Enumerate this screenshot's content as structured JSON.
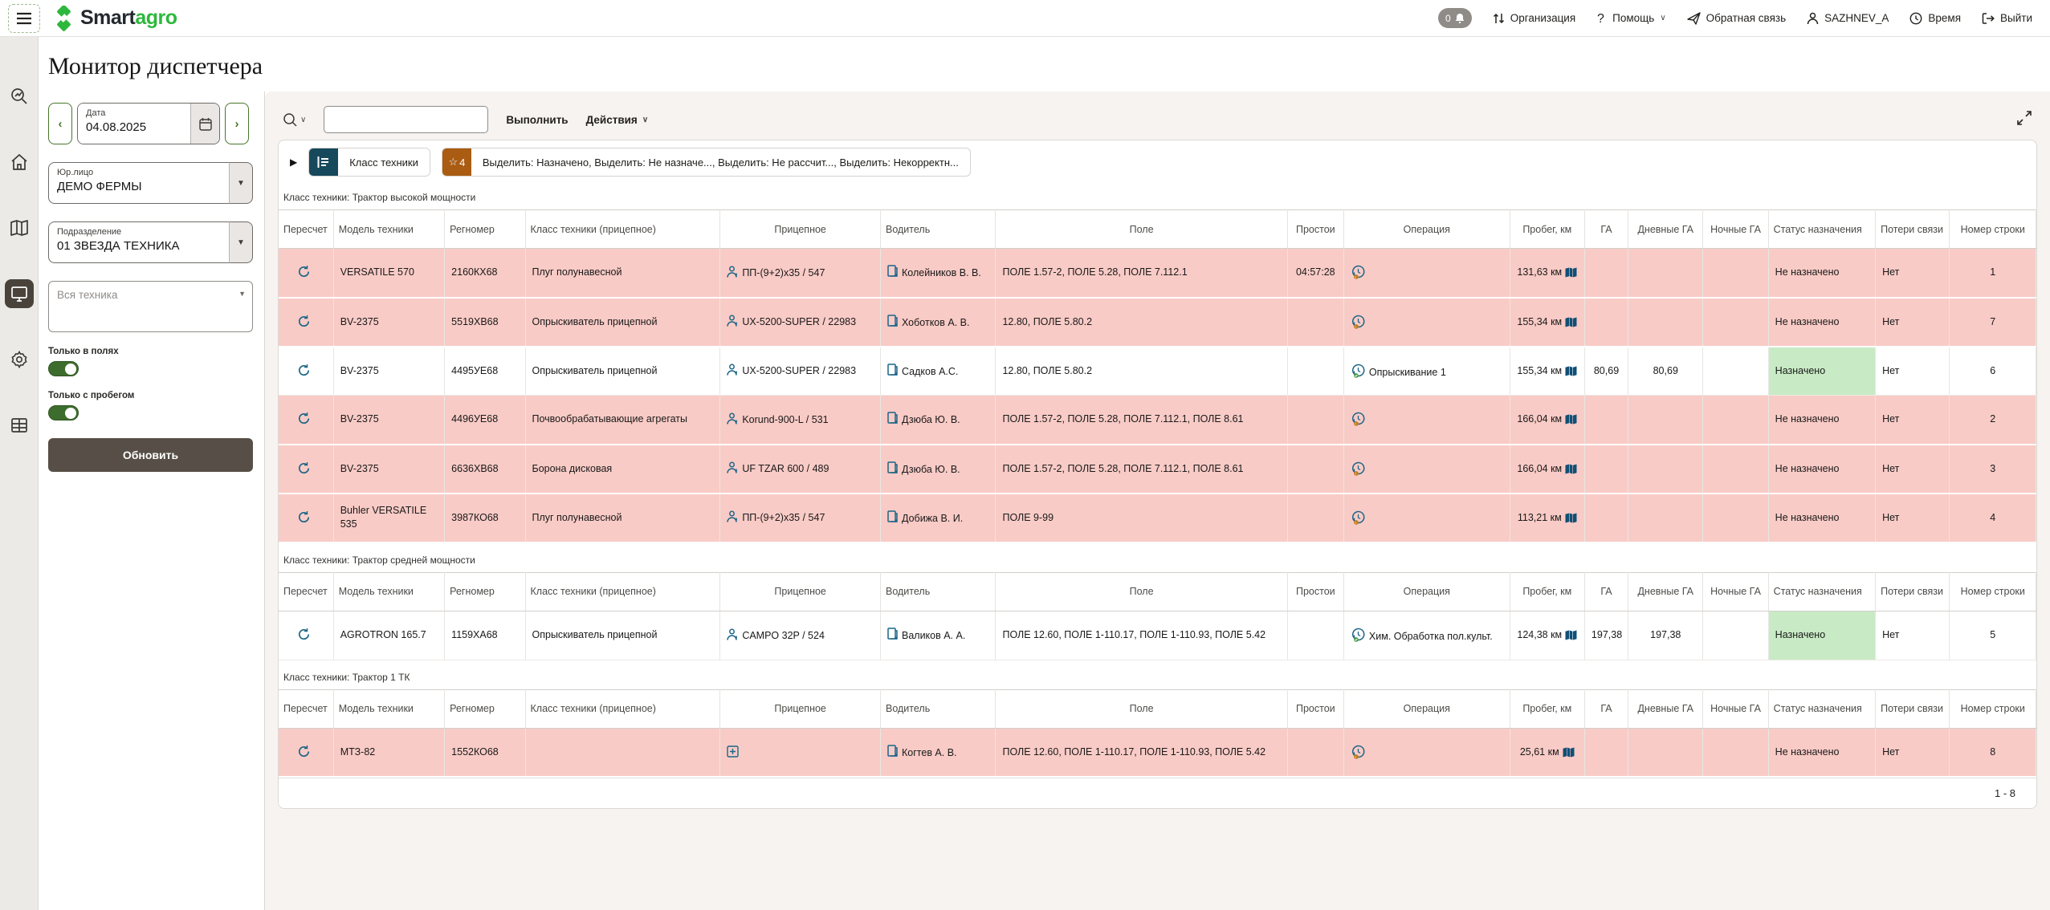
{
  "header": {
    "logo_smart": "Smart",
    "logo_agro": "agro",
    "notification_count": "0",
    "nav": [
      {
        "label": "Организация"
      },
      {
        "label": "Помощь",
        "chevron": "∨"
      },
      {
        "label": "Обратная связь"
      },
      {
        "label": "SAZHNEV_A"
      },
      {
        "label": "Время"
      },
      {
        "label": "Выйти"
      }
    ]
  },
  "page_title": "Монитор диспетчера",
  "filters": {
    "date_label": "Дата",
    "date_value": "04.08.2025",
    "entity_label": "Юр.лицо",
    "entity_value": "ДЕМО ФЕРМЫ",
    "division_label": "Подразделение",
    "division_value": "01 ЗВЕЗДА ТЕХНИКА",
    "equipment_placeholder": "Вся техника",
    "toggle_fields_label": "Только в полях",
    "toggle_mileage_label": "Только с пробегом",
    "refresh_label": "Обновить"
  },
  "toolbar": {
    "search_value": "",
    "run_label": "Выполнить",
    "actions_label": "Действия"
  },
  "control_bar": {
    "class_chip_label": "Класс техники",
    "star_count": "4",
    "highlight_label": "Выделить: Назначено, Выделить: Не назначе..., Выделить: Не рассчит..., Выделить: Некорректн..."
  },
  "table": {
    "headers": [
      "Пересчет",
      "Модель техники",
      "Регномер",
      "Класс техники (прицепное)",
      "Прицепное",
      "Водитель",
      "Поле",
      "Простои",
      "Операция",
      "Пробег, км",
      "ГА",
      "Дневные ГА",
      "Ночные ГА",
      "Статус назначения",
      "Потери связи",
      "Номер строки"
    ],
    "groups": [
      {
        "title": "Класс техники: Трактор высокой мощности",
        "rows": [
          {
            "model": "VERSATILE 570",
            "reg": "2160КХ68",
            "trailer_class": "Плуг полунавесной",
            "trailer": "ПП-(9+2)х35 / 547",
            "trailer_icon": "person-droplet",
            "driver": "Колейников В. В.",
            "field": "ПОЛЕ 1.57-2, ПОЛЕ 5.28, ПОЛЕ 7.112.1",
            "idle": "04:57:28",
            "operation": "",
            "op_status": "unassigned",
            "mileage": "131,63 км",
            "ga": "",
            "day_ga": "",
            "night_ga": "",
            "status": "Не назначено",
            "status_type": "unassigned",
            "losses": "Нет",
            "row_num": "1",
            "highlight": "pink"
          },
          {
            "model": "BV-2375",
            "reg": "5519ХВ68",
            "trailer_class": "Опрыскиватель прицепной",
            "trailer": "UX-5200-SUPER / 22983",
            "trailer_icon": "person-droplet",
            "driver": "Хоботков А. В.",
            "field": "12.80, ПОЛЕ 5.80.2",
            "idle": "",
            "operation": "",
            "op_status": "unassigned",
            "mileage": "155,34 км",
            "ga": "",
            "day_ga": "",
            "night_ga": "",
            "status": "Не назначено",
            "status_type": "unassigned",
            "losses": "Нет",
            "row_num": "7",
            "highlight": "pink"
          },
          {
            "model": "BV-2375",
            "reg": "4495УЕ68",
            "trailer_class": "Опрыскиватель прицепной",
            "trailer": "UX-5200-SUPER / 22983",
            "trailer_icon": "person-droplet",
            "driver": "Садков А.С.",
            "field": "12.80, ПОЛЕ 5.80.2",
            "idle": "",
            "operation": "Опрыскивание 1",
            "op_status": "assigned",
            "mileage": "155,34 км",
            "ga": "80,69",
            "day_ga": "80,69",
            "night_ga": "",
            "status": "Назначено",
            "status_type": "assigned",
            "losses": "Нет",
            "row_num": "6",
            "highlight": "white"
          },
          {
            "model": "BV-2375",
            "reg": "4496УЕ68",
            "trailer_class": "Почвообрабатывающие агрегаты",
            "trailer": "Korund-900-L / 531",
            "trailer_icon": "person-droplet",
            "driver": "Дзюба Ю. В.",
            "field": "ПОЛЕ 1.57-2, ПОЛЕ 5.28, ПОЛЕ 7.112.1, ПОЛЕ 8.61",
            "idle": "",
            "operation": "",
            "op_status": "unassigned",
            "mileage": "166,04 км",
            "ga": "",
            "day_ga": "",
            "night_ga": "",
            "status": "Не назначено",
            "status_type": "unassigned",
            "losses": "Нет",
            "row_num": "2",
            "highlight": "pink"
          },
          {
            "model": "BV-2375",
            "reg": "6636ХВ68",
            "trailer_class": "Борона дисковая",
            "trailer": "UF TZAR 600 / 489",
            "trailer_icon": "person-droplet",
            "driver": "Дзюба Ю. В.",
            "field": "ПОЛЕ 1.57-2, ПОЛЕ 5.28, ПОЛЕ 7.112.1, ПОЛЕ 8.61",
            "idle": "",
            "operation": "",
            "op_status": "unassigned",
            "mileage": "166,04 км",
            "ga": "",
            "day_ga": "",
            "night_ga": "",
            "status": "Не назначено",
            "status_type": "unassigned",
            "losses": "Нет",
            "row_num": "3",
            "highlight": "pink"
          },
          {
            "model": "Buhler VERSATILE 535",
            "reg": "3987КО68",
            "trailer_class": "Плуг полунавесной",
            "trailer": "ПП-(9+2)х35 / 547",
            "trailer_icon": "person-droplet",
            "driver": "Добижа В. И.",
            "field": "ПОЛЕ 9-99",
            "idle": "",
            "operation": "",
            "op_status": "unassigned",
            "mileage": "113,21 км",
            "ga": "",
            "day_ga": "",
            "night_ga": "",
            "status": "Не назначено",
            "status_type": "unassigned",
            "losses": "Нет",
            "row_num": "4",
            "highlight": "pink"
          }
        ]
      },
      {
        "title": "Класс техники: Трактор средней мощности",
        "rows": [
          {
            "model": "AGROTRON 165.7",
            "reg": "1159ХА68",
            "trailer_class": "Опрыскиватель прицепной",
            "trailer": "CAMPO 32P / 524",
            "trailer_icon": "person-droplet",
            "driver": "Валиков А. А.",
            "field": "ПОЛЕ 12.60, ПОЛЕ 1-110.17, ПОЛЕ 1-110.93, ПОЛЕ 5.42",
            "idle": "",
            "operation": "Хим. Обработка пол.культ.",
            "op_status": "assigned",
            "mileage": "124,38 км",
            "ga": "197,38",
            "day_ga": "197,38",
            "night_ga": "",
            "status": "Назначено",
            "status_type": "assigned",
            "losses": "Нет",
            "row_num": "5",
            "highlight": "white"
          }
        ]
      },
      {
        "title": "Класс техники: Трактор 1 ТК",
        "rows": [
          {
            "model": "МТЗ-82",
            "reg": "1552КО68",
            "trailer_class": "",
            "trailer": "",
            "trailer_icon": "plus",
            "driver": "Когтев А. В.",
            "field": "ПОЛЕ 12.60, ПОЛЕ 1-110.17, ПОЛЕ 1-110.93, ПОЛЕ 5.42",
            "idle": "",
            "operation": "",
            "op_status": "unassigned",
            "mileage": "25,61 км",
            "ga": "",
            "day_ga": "",
            "night_ga": "",
            "status": "Не назначено",
            "status_type": "unassigned",
            "losses": "Нет",
            "row_num": "8",
            "highlight": "pink"
          }
        ]
      }
    ],
    "pagination": "1 - 8"
  },
  "colors": {
    "accent_green": "#48762a",
    "logo_green": "#2db83d",
    "row_unassigned_bg": "#f9cbc6",
    "status_assigned_bg": "#c8ebc5",
    "chip_teal": "#17495c",
    "chip_brown": "#a95c12",
    "icon_blue": "#1b6587",
    "dark_button": "#574f47"
  }
}
